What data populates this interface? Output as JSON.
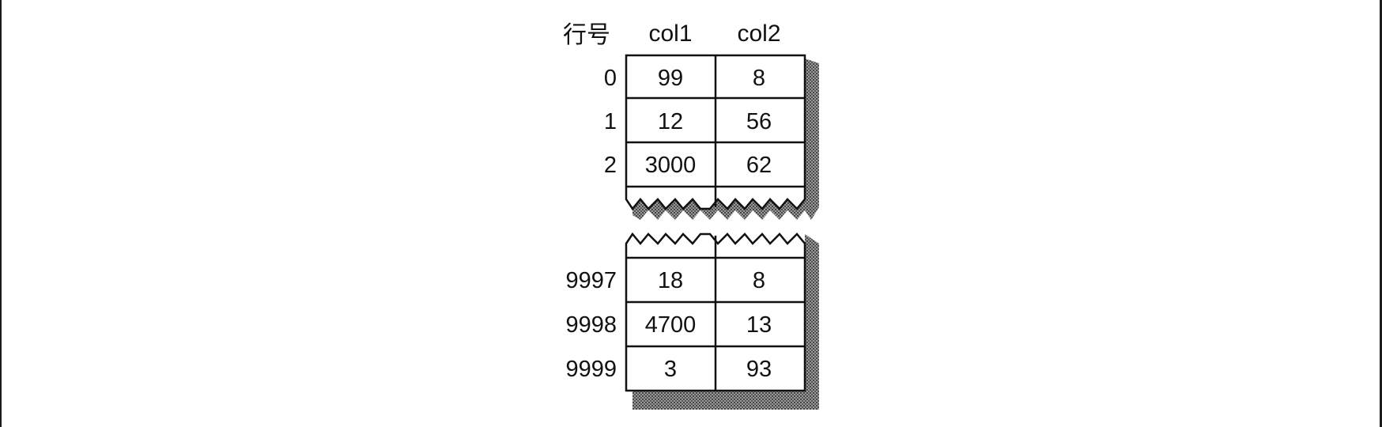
{
  "header": {
    "row_label": "行号",
    "columns": [
      "col1",
      "col2"
    ]
  },
  "top_rows": [
    {
      "index": "0",
      "values": [
        "99",
        "8"
      ]
    },
    {
      "index": "1",
      "values": [
        "12",
        "56"
      ]
    },
    {
      "index": "2",
      "values": [
        "3000",
        "62"
      ]
    }
  ],
  "bottom_rows": [
    {
      "index": "9997",
      "values": [
        "18",
        "8"
      ]
    },
    {
      "index": "9998",
      "values": [
        "4700",
        "13"
      ]
    },
    {
      "index": "9999",
      "values": [
        "3",
        "93"
      ]
    }
  ]
}
